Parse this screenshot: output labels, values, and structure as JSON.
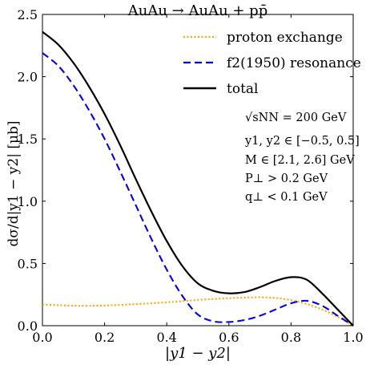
{
  "chart_data": {
    "type": "line",
    "title": "AuAu → AuAu + pp̄",
    "xlabel": "|y1 − y2|",
    "ylabel": "dσ/d|y1 − y2| [μb]",
    "xlim": [
      0,
      1.0
    ],
    "ylim": [
      0,
      2.5
    ],
    "xticks": [
      0.0,
      0.2,
      0.4,
      0.6,
      0.8,
      1.0
    ],
    "xtick_labels": [
      "0.0",
      "0.2",
      "0.4",
      "0.6",
      "0.8",
      "1.0"
    ],
    "yticks": [
      0.0,
      0.5,
      1.0,
      1.5,
      2.0,
      2.5
    ],
    "ytick_labels": [
      "0.0",
      "0.5",
      "1.0",
      "1.5",
      "2.0",
      "2.5"
    ],
    "grid": false,
    "legend_position": "top-right",
    "annotations": [
      "√sNN = 200 GeV",
      "y1, y2 ∈ [−0.5, 0.5]",
      "M ∈ [2.1, 2.6] GeV",
      "P⊥ > 0.2 GeV",
      "q⊥ < 0.1 GeV"
    ],
    "series": [
      {
        "name": "proton exchange",
        "color": "#FFA500",
        "style": "dotted",
        "x": [
          0.0,
          0.05,
          0.1,
          0.15,
          0.2,
          0.25,
          0.3,
          0.35,
          0.4,
          0.45,
          0.5,
          0.55,
          0.6,
          0.65,
          0.7,
          0.75,
          0.8,
          0.85,
          0.9,
          0.95,
          1.0
        ],
        "y": [
          0.17,
          0.165,
          0.16,
          0.16,
          0.162,
          0.167,
          0.173,
          0.18,
          0.188,
          0.197,
          0.207,
          0.215,
          0.221,
          0.226,
          0.228,
          0.223,
          0.205,
          0.175,
          0.13,
          0.07,
          0.0
        ]
      },
      {
        "name": "f2(1950) resonance",
        "color": "#0000EE",
        "style": "dashed",
        "x": [
          0.0,
          0.05,
          0.1,
          0.15,
          0.2,
          0.25,
          0.3,
          0.35,
          0.4,
          0.45,
          0.5,
          0.55,
          0.6,
          0.65,
          0.7,
          0.75,
          0.8,
          0.85,
          0.9,
          0.95,
          1.0
        ],
        "y": [
          2.19,
          2.09,
          1.93,
          1.73,
          1.5,
          1.24,
          0.97,
          0.7,
          0.45,
          0.24,
          0.09,
          0.035,
          0.03,
          0.045,
          0.08,
          0.13,
          0.18,
          0.2,
          0.16,
          0.08,
          0.0
        ]
      },
      {
        "name": "total",
        "color": "#000000",
        "style": "solid",
        "x": [
          0.0,
          0.05,
          0.1,
          0.15,
          0.2,
          0.25,
          0.3,
          0.35,
          0.4,
          0.45,
          0.5,
          0.55,
          0.6,
          0.65,
          0.7,
          0.75,
          0.8,
          0.85,
          0.9,
          0.95,
          1.0
        ],
        "y": [
          2.36,
          2.26,
          2.11,
          1.92,
          1.7,
          1.45,
          1.18,
          0.92,
          0.68,
          0.48,
          0.34,
          0.28,
          0.26,
          0.27,
          0.31,
          0.36,
          0.39,
          0.37,
          0.26,
          0.13,
          0.0
        ]
      }
    ]
  }
}
